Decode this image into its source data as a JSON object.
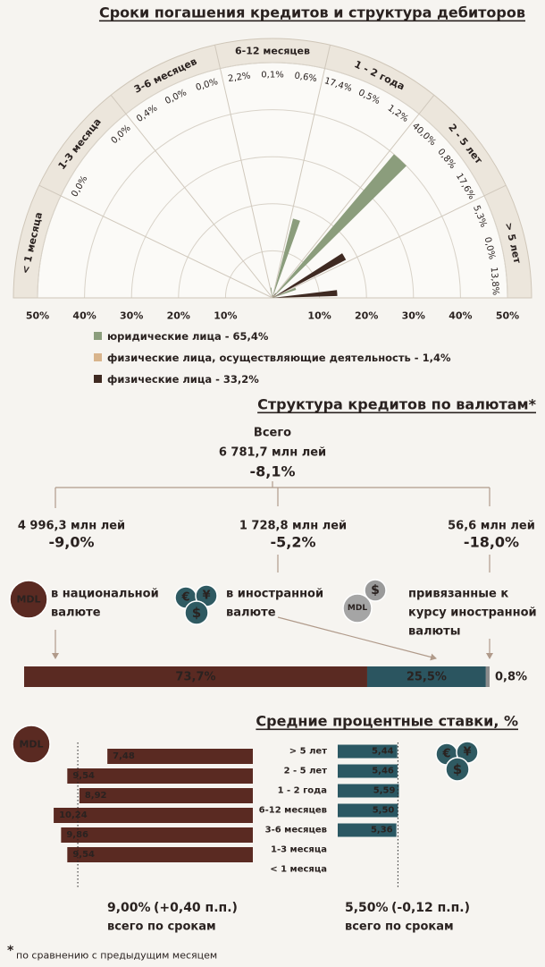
{
  "chart_data": [
    {
      "type": "polar-bar",
      "title": "Сроки погашения кредитов и структура дебиторов",
      "categories": [
        "< 1 месяца",
        "1-3 месяца",
        "3-6 месяцев",
        "6-12 месяцев",
        "1 - 2 года",
        "2 - 5 лет",
        "> 5 лет"
      ],
      "series": [
        {
          "name": "юридические лица - 65,4%",
          "color": "#8b9d7c",
          "label_color": "#738e62",
          "values": [
            null,
            0,
            0.4,
            2.2,
            17.4,
            40.0,
            5.3
          ],
          "value_labels": [
            null,
            "0,0%",
            "0,4%",
            "2,2%",
            "17,4%",
            "40,0%",
            "5,3%"
          ]
        },
        {
          "name": "физические лица, осуществляющие деятельность - 1,4%",
          "color": "#d8b48c",
          "label_color": "#c8863a",
          "values": [
            null,
            null,
            0,
            0.1,
            0.5,
            0.8,
            0
          ],
          "value_labels": [
            null,
            null,
            "0,0%",
            "0,1%",
            "0,5%",
            "0,8%",
            "0,0%"
          ]
        },
        {
          "name": "физические лица - 33,2%",
          "color": "#3f2a22",
          "label_color": "#3b2b26",
          "values": [
            null,
            0,
            0,
            0.6,
            1.2,
            17.6,
            13.8
          ],
          "value_labels": [
            null,
            "0,0%",
            "0,0%",
            "0,6%",
            "1,2%",
            "17,6%",
            "13,8%"
          ]
        }
      ],
      "rlim": [
        0,
        50
      ],
      "rticks": [
        {
          "value": 10,
          "label": "10%"
        },
        {
          "value": 20,
          "label": "20%"
        },
        {
          "value": 30,
          "label": "30%"
        },
        {
          "value": 40,
          "label": "40%"
        },
        {
          "value": 50,
          "label": "50%"
        }
      ],
      "grid": true
    },
    {
      "type": "currency-tree",
      "title": "Структура кредитов по валютам*",
      "total": {
        "caption": "Всего",
        "amount": "6 781,7 млн лей",
        "change": "-8,1%"
      },
      "branches": [
        {
          "amount": "4 996,3 млн лей",
          "change": "-9,0%",
          "label": [
            "в национальной",
            "валюте"
          ]
        },
        {
          "amount": "1 728,8 млн лей",
          "change": "-5,2%",
          "label": [
            "в  иностранной",
            "валюте"
          ]
        },
        {
          "amount": "56,6 млн лей",
          "change": "-18,0%",
          "label": [
            "привязанные к",
            "курсу иностранной",
            "валюты"
          ]
        }
      ],
      "bar": {
        "type": "stacked-bar",
        "values": [
          73.7,
          25.5,
          0.8
        ],
        "value_labels": [
          "73,7%",
          "25,5%",
          "0,8%"
        ],
        "colors": [
          "#5a2a22",
          "#2b5560",
          "#8c8c8c"
        ],
        "xlim": [
          0,
          100
        ]
      }
    },
    {
      "type": "mirrored-bar",
      "title": "Средние процентные ставки, %",
      "categories": [
        "> 5 лет",
        "2 - 5 лет",
        "1 - 2 года",
        "6-12 месяцев",
        "3-6 месяцев",
        "1-3 месяца",
        "< 1 месяца"
      ],
      "series": [
        {
          "color": "#5a2a22",
          "values": [
            7.48,
            9.54,
            8.92,
            10.24,
            9.86,
            9.54,
            null
          ],
          "value_labels": [
            "7,48",
            "9,54",
            "8,92",
            "10,24",
            "9,86",
            "9,54",
            null
          ],
          "xlim": [
            0,
            13
          ],
          "total": 9.0,
          "total_label": "9,00%",
          "change_label": "(+0,40 п.п.)",
          "change_color": "#3f7d3a",
          "caption": "всего по срокам"
        },
        {
          "color": "#2b5863",
          "values": [
            5.44,
            5.46,
            5.59,
            5.5,
            5.36,
            null,
            null
          ],
          "value_labels": [
            "5,44",
            "5,46",
            "5,59",
            "5,50",
            "5,36",
            null,
            null
          ],
          "xlim": [
            0,
            8
          ],
          "total": 5.5,
          "total_label": "5,50%",
          "change_label": "(-0,12 п.п.)",
          "change_color": "#b5121b",
          "caption": "всего по срокам"
        }
      ]
    }
  ],
  "icons": {
    "mdl": "MDL",
    "foreign": [
      "€",
      "¥",
      "$"
    ]
  },
  "footnote": {
    "mark": "*",
    "text": "по сравнению с предыдущим месяцем"
  }
}
